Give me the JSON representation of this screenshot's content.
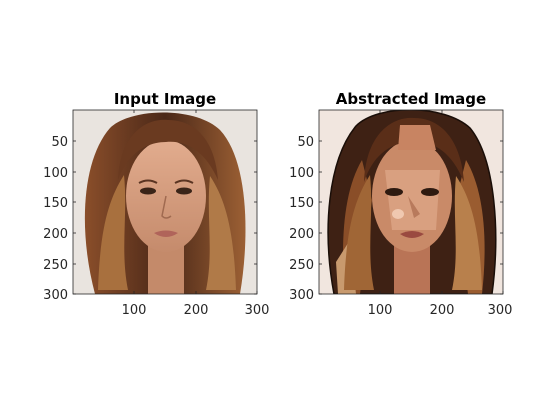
{
  "figure": {
    "panels": [
      {
        "title": "Input Image",
        "image_icon": "portrait-photo-icon",
        "xticks": [
          "100",
          "200",
          "300"
        ],
        "yticks": [
          "50",
          "100",
          "150",
          "200",
          "250",
          "300"
        ]
      },
      {
        "title": "Abstracted Image",
        "image_icon": "abstracted-portrait-icon",
        "xticks": [
          "100",
          "200",
          "300"
        ],
        "yticks": [
          "50",
          "100",
          "150",
          "200",
          "250",
          "300"
        ]
      }
    ],
    "colors": {
      "background_left": "#e9e4df",
      "background_right": "#f1e6df",
      "hair_dark": "#4a2a1a",
      "hair_mid": "#7a4426",
      "hair_light": "#b37a4a",
      "skin": "#d19a7c",
      "skin_light": "#e8b89c",
      "axis": "#262626"
    }
  }
}
